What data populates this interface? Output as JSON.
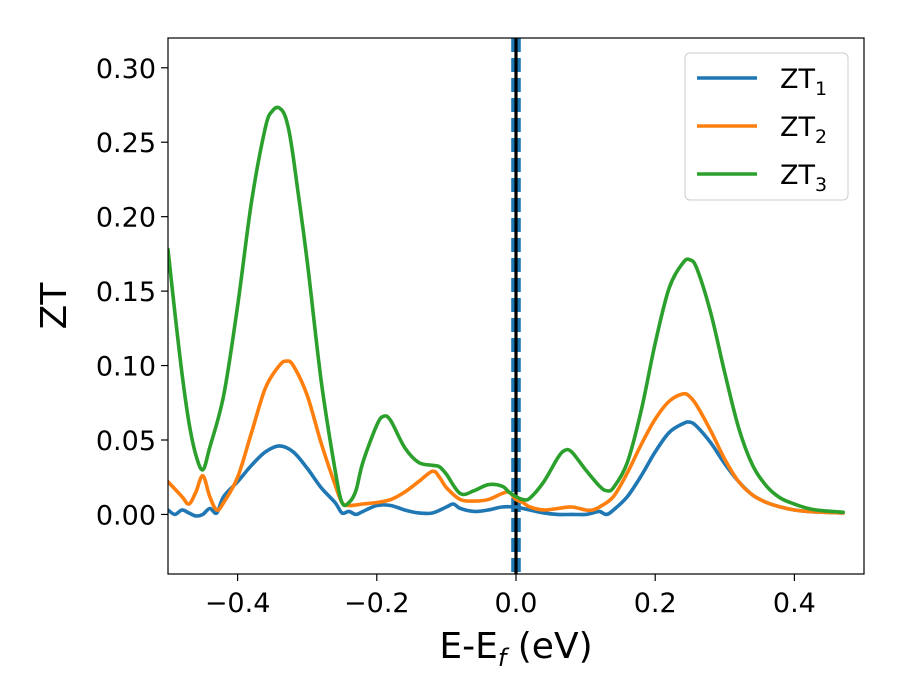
{
  "chart_data": {
    "type": "line",
    "title": "",
    "xlabel": {
      "main": "E-E",
      "sub": "f",
      "unit": " (eV)"
    },
    "ylabel": "ZT",
    "xlim": [
      -0.5,
      0.5
    ],
    "ylim": [
      -0.04,
      0.32
    ],
    "x_ticks": [
      -0.4,
      -0.2,
      0.0,
      0.2,
      0.4
    ],
    "x_tick_labels": [
      "−0.4",
      "−0.2",
      "0.0",
      "0.2",
      "0.4"
    ],
    "y_ticks": [
      0.0,
      0.05,
      0.1,
      0.15,
      0.2,
      0.25,
      0.3
    ],
    "y_tick_labels": [
      "0.00",
      "0.05",
      "0.10",
      "0.15",
      "0.20",
      "0.25",
      "0.30"
    ],
    "grid": false,
    "legend_position": "top-right",
    "vertical_lines": [
      {
        "x": -0.004,
        "style": "dashed",
        "color": "#1f77b4"
      },
      {
        "x": 0.004,
        "style": "dashed",
        "color": "#1f77b4"
      },
      {
        "x": 0.0,
        "style": "solid",
        "color": "#000000"
      }
    ],
    "series": [
      {
        "name": "ZT",
        "sub": "1",
        "color": "#1f77b4",
        "points": [
          [
            -0.5,
            0.003
          ],
          [
            -0.49,
            0.0
          ],
          [
            -0.48,
            0.003
          ],
          [
            -0.47,
            0.001
          ],
          [
            -0.46,
            -0.001
          ],
          [
            -0.45,
            0.0
          ],
          [
            -0.44,
            0.004
          ],
          [
            -0.43,
            0.001
          ],
          [
            -0.42,
            0.012
          ],
          [
            -0.4,
            0.022
          ],
          [
            -0.38,
            0.033
          ],
          [
            -0.36,
            0.042
          ],
          [
            -0.34,
            0.046
          ],
          [
            -0.32,
            0.042
          ],
          [
            -0.3,
            0.031
          ],
          [
            -0.28,
            0.018
          ],
          [
            -0.26,
            0.008
          ],
          [
            -0.25,
            0.001
          ],
          [
            -0.24,
            0.002
          ],
          [
            -0.23,
            0.0
          ],
          [
            -0.22,
            0.002
          ],
          [
            -0.2,
            0.006
          ],
          [
            -0.18,
            0.006
          ],
          [
            -0.16,
            0.003
          ],
          [
            -0.14,
            0.001
          ],
          [
            -0.12,
            0.001
          ],
          [
            -0.1,
            0.005
          ],
          [
            -0.09,
            0.007
          ],
          [
            -0.08,
            0.004
          ],
          [
            -0.06,
            0.002
          ],
          [
            -0.04,
            0.003
          ],
          [
            -0.02,
            0.005
          ],
          [
            0.0,
            0.005
          ],
          [
            0.01,
            0.004
          ],
          [
            0.02,
            0.003
          ],
          [
            0.04,
            0.001
          ],
          [
            0.06,
            0.0
          ],
          [
            0.08,
            0.0
          ],
          [
            0.1,
            0.0
          ],
          [
            0.11,
            0.001
          ],
          [
            0.12,
            0.002
          ],
          [
            0.13,
            0.0
          ],
          [
            0.14,
            0.003
          ],
          [
            0.16,
            0.012
          ],
          [
            0.18,
            0.026
          ],
          [
            0.2,
            0.042
          ],
          [
            0.22,
            0.055
          ],
          [
            0.24,
            0.061
          ],
          [
            0.25,
            0.062
          ],
          [
            0.26,
            0.059
          ],
          [
            0.28,
            0.048
          ],
          [
            0.3,
            0.034
          ],
          [
            0.32,
            0.022
          ],
          [
            0.34,
            0.013
          ],
          [
            0.36,
            0.008
          ],
          [
            0.38,
            0.005
          ],
          [
            0.4,
            0.003
          ],
          [
            0.42,
            0.002
          ],
          [
            0.44,
            0.0015
          ],
          [
            0.47,
            0.001
          ]
        ]
      },
      {
        "name": "ZT",
        "sub": "2",
        "color": "#ff7f0e",
        "points": [
          [
            -0.5,
            0.022
          ],
          [
            -0.48,
            0.012
          ],
          [
            -0.47,
            0.007
          ],
          [
            -0.46,
            0.015
          ],
          [
            -0.45,
            0.026
          ],
          [
            -0.44,
            0.012
          ],
          [
            -0.43,
            0.003
          ],
          [
            -0.42,
            0.008
          ],
          [
            -0.4,
            0.025
          ],
          [
            -0.38,
            0.055
          ],
          [
            -0.36,
            0.085
          ],
          [
            -0.34,
            0.1
          ],
          [
            -0.33,
            0.103
          ],
          [
            -0.32,
            0.1
          ],
          [
            -0.3,
            0.08
          ],
          [
            -0.28,
            0.048
          ],
          [
            -0.26,
            0.02
          ],
          [
            -0.25,
            0.008
          ],
          [
            -0.24,
            0.006
          ],
          [
            -0.22,
            0.007
          ],
          [
            -0.2,
            0.008
          ],
          [
            -0.18,
            0.01
          ],
          [
            -0.16,
            0.015
          ],
          [
            -0.14,
            0.022
          ],
          [
            -0.12,
            0.029
          ],
          [
            -0.11,
            0.025
          ],
          [
            -0.1,
            0.018
          ],
          [
            -0.08,
            0.01
          ],
          [
            -0.06,
            0.009
          ],
          [
            -0.04,
            0.01
          ],
          [
            -0.02,
            0.014
          ],
          [
            -0.01,
            0.015
          ],
          [
            0.0,
            0.01
          ],
          [
            0.01,
            0.008
          ],
          [
            0.02,
            0.005
          ],
          [
            0.04,
            0.003
          ],
          [
            0.06,
            0.004
          ],
          [
            0.08,
            0.005
          ],
          [
            0.1,
            0.003
          ],
          [
            0.11,
            0.003
          ],
          [
            0.12,
            0.005
          ],
          [
            0.14,
            0.012
          ],
          [
            0.16,
            0.028
          ],
          [
            0.18,
            0.047
          ],
          [
            0.2,
            0.064
          ],
          [
            0.22,
            0.076
          ],
          [
            0.24,
            0.081
          ],
          [
            0.25,
            0.079
          ],
          [
            0.26,
            0.073
          ],
          [
            0.28,
            0.056
          ],
          [
            0.3,
            0.037
          ],
          [
            0.32,
            0.022
          ],
          [
            0.34,
            0.013
          ],
          [
            0.36,
            0.008
          ],
          [
            0.38,
            0.005
          ],
          [
            0.4,
            0.003
          ],
          [
            0.42,
            0.002
          ],
          [
            0.44,
            0.0015
          ],
          [
            0.47,
            0.001
          ]
        ]
      },
      {
        "name": "ZT",
        "sub": "3",
        "color": "#2ca02c",
        "points": [
          [
            -0.5,
            0.178
          ],
          [
            -0.49,
            0.135
          ],
          [
            -0.48,
            0.095
          ],
          [
            -0.47,
            0.062
          ],
          [
            -0.46,
            0.04
          ],
          [
            -0.45,
            0.03
          ],
          [
            -0.44,
            0.045
          ],
          [
            -0.42,
            0.08
          ],
          [
            -0.4,
            0.14
          ],
          [
            -0.38,
            0.21
          ],
          [
            -0.36,
            0.26
          ],
          [
            -0.35,
            0.271
          ],
          [
            -0.34,
            0.273
          ],
          [
            -0.33,
            0.265
          ],
          [
            -0.32,
            0.24
          ],
          [
            -0.3,
            0.17
          ],
          [
            -0.28,
            0.09
          ],
          [
            -0.26,
            0.03
          ],
          [
            -0.25,
            0.008
          ],
          [
            -0.24,
            0.008
          ],
          [
            -0.23,
            0.016
          ],
          [
            -0.22,
            0.035
          ],
          [
            -0.2,
            0.06
          ],
          [
            -0.19,
            0.066
          ],
          [
            -0.18,
            0.063
          ],
          [
            -0.16,
            0.045
          ],
          [
            -0.14,
            0.035
          ],
          [
            -0.12,
            0.033
          ],
          [
            -0.11,
            0.032
          ],
          [
            -0.1,
            0.027
          ],
          [
            -0.08,
            0.014
          ],
          [
            -0.06,
            0.016
          ],
          [
            -0.04,
            0.02
          ],
          [
            -0.02,
            0.019
          ],
          [
            -0.01,
            0.015
          ],
          [
            0.0,
            0.012
          ],
          [
            0.01,
            0.01
          ],
          [
            0.02,
            0.011
          ],
          [
            0.04,
            0.022
          ],
          [
            0.06,
            0.038
          ],
          [
            0.07,
            0.043
          ],
          [
            0.08,
            0.042
          ],
          [
            0.1,
            0.03
          ],
          [
            0.12,
            0.019
          ],
          [
            0.13,
            0.016
          ],
          [
            0.14,
            0.018
          ],
          [
            0.16,
            0.035
          ],
          [
            0.18,
            0.07
          ],
          [
            0.2,
            0.115
          ],
          [
            0.22,
            0.152
          ],
          [
            0.24,
            0.169
          ],
          [
            0.25,
            0.171
          ],
          [
            0.26,
            0.165
          ],
          [
            0.28,
            0.135
          ],
          [
            0.3,
            0.095
          ],
          [
            0.32,
            0.058
          ],
          [
            0.34,
            0.033
          ],
          [
            0.36,
            0.019
          ],
          [
            0.38,
            0.011
          ],
          [
            0.4,
            0.007
          ],
          [
            0.42,
            0.004
          ],
          [
            0.44,
            0.0025
          ],
          [
            0.47,
            0.0015
          ]
        ]
      }
    ]
  }
}
